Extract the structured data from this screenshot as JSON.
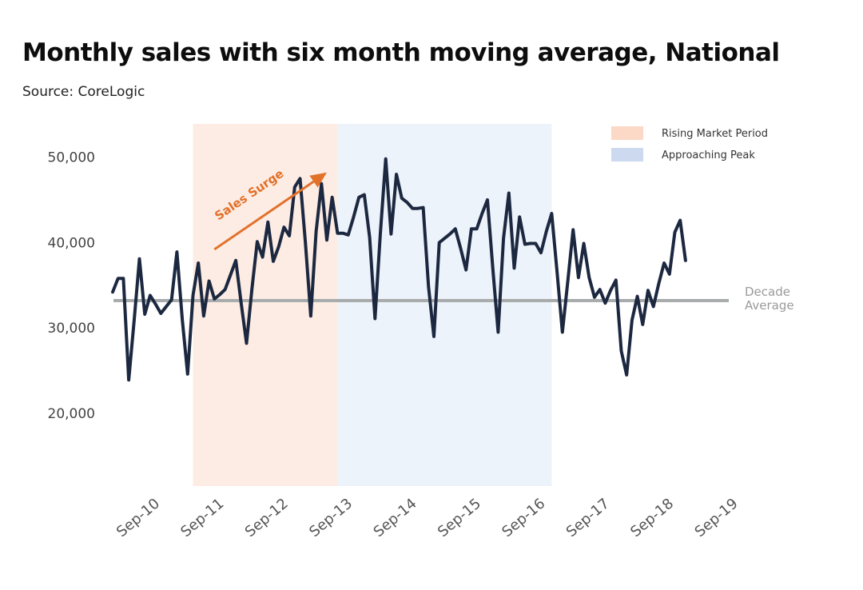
{
  "chart_data": {
    "type": "line",
    "title": "Monthly sales with six month moving average, National",
    "subtitle": "Source: CoreLogic",
    "xlabel": "",
    "ylabel": "",
    "ylim": [
      10000,
      55000
    ],
    "yticks": [
      {
        "value": 20000,
        "label": "20,000"
      },
      {
        "value": 30000,
        "label": "30,000"
      },
      {
        "value": 40000,
        "label": "40,000"
      },
      {
        "value": 50000,
        "label": "50,000"
      }
    ],
    "xticks": [
      {
        "index": 5,
        "label": "Sep-10"
      },
      {
        "index": 17,
        "label": "Sep-11"
      },
      {
        "index": 29,
        "label": "Sep-12"
      },
      {
        "index": 41,
        "label": "Sep-13"
      },
      {
        "index": 53,
        "label": "Sep-14"
      },
      {
        "index": 65,
        "label": "Sep-15"
      },
      {
        "index": 77,
        "label": "Sep-16"
      },
      {
        "index": 89,
        "label": "Sep-17"
      },
      {
        "index": 101,
        "label": "Sep-18"
      },
      {
        "index": 113,
        "label": "Sep-19"
      }
    ],
    "x_index_range": [
      0,
      115
    ],
    "series": [
      {
        "name": "Monthly sales",
        "color": "#1c2840",
        "values": [
          34200,
          35800,
          35800,
          23900,
          30800,
          38100,
          31600,
          33800,
          32800,
          31700,
          32500,
          33300,
          38900,
          31000,
          24600,
          33800,
          37600,
          31400,
          35500,
          33400,
          33900,
          34500,
          36200,
          37900,
          32900,
          28200,
          34500,
          40100,
          38300,
          42400,
          37800,
          39500,
          41800,
          40800,
          46500,
          47500,
          40000,
          31400,
          41300,
          46900,
          40300,
          45300,
          41100,
          41100,
          40900,
          43000,
          45300,
          45600,
          40600,
          31100,
          41100,
          49800,
          41000,
          48000,
          45200,
          44700,
          44000,
          44000,
          44100,
          34800,
          29000,
          40000,
          40500,
          41000,
          41600,
          39300,
          36800,
          41600,
          41600,
          43400,
          45000,
          37000,
          29500,
          40500,
          45800,
          37000,
          43000,
          39800,
          39900,
          39900,
          38800,
          41300,
          43400,
          36600,
          29500,
          35400,
          41500,
          35900,
          39900,
          35900,
          33600,
          34500,
          32900,
          34400,
          35600,
          27300,
          24500,
          30900,
          33700,
          30400,
          34400,
          32500,
          35200,
          37600,
          36300,
          41200,
          42600,
          37900
        ]
      }
    ],
    "x_start_index": 0,
    "reference_line": {
      "value": 33200,
      "label_line1": "Decade",
      "label_line2": "Average",
      "color": "#a9acac"
    },
    "bands": [
      {
        "name": "Rising Market Period",
        "start_index": 15,
        "end_index": 42,
        "color": "#fdece4"
      },
      {
        "name": "Approaching Peak",
        "start_index": 42,
        "end_index": 82,
        "color": "#edf3fa"
      }
    ],
    "legend": {
      "position": "top-right",
      "items": [
        {
          "label": "Rising Market Period",
          "color": "#fbd9c6"
        },
        {
          "label": "Approaching Peak",
          "color": "#ccd9ee"
        }
      ]
    },
    "annotation": {
      "text": "Sales Surge",
      "color": "#e2712a",
      "from_index": 19,
      "from_value": 39200,
      "to_index": 40,
      "to_value": 48200
    }
  }
}
